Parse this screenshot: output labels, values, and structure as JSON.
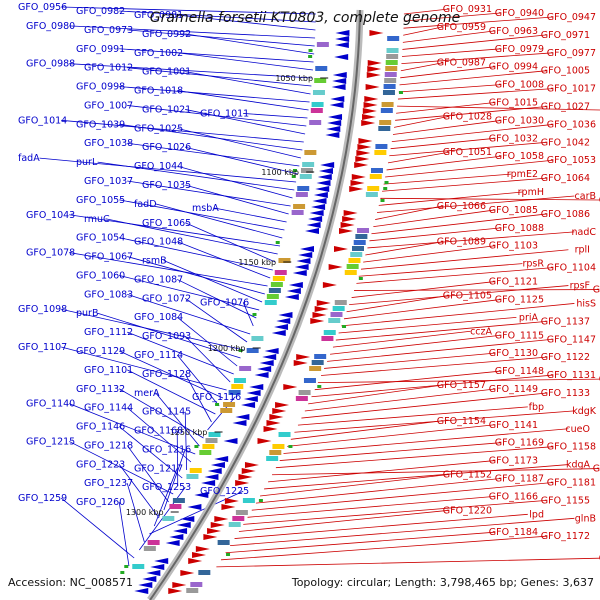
{
  "title": "Gramella forsetii KT0803, complete genome",
  "footer": {
    "accession": "Accession: NC_008571",
    "summary": "Topology: circular; Length: 3,798,465 bp; Genes: 3,637"
  },
  "colors": {
    "forward": "#cc0000",
    "reverse": "#0000cc",
    "backbone": "#999999",
    "rna": "#22aa22"
  },
  "ticks": [
    "1050 kbp",
    "1100 kbp",
    "1150 kbp",
    "1200 kbp",
    "1250 kbp",
    "1300 kbp"
  ],
  "left_labels": [
    "GFO_0956",
    "GFO_0982",
    "GFO_0981",
    "GFO_0980",
    "GFO_0973",
    "GFO_0992",
    "GFO_0991",
    "GFO_1002",
    "GFO_0988",
    "GFO_1012",
    "GFO_1001",
    "GFO_0998",
    "GFO_1018",
    "GFO_1011",
    "GFO_1007",
    "GFO_1021",
    "GFO_1014",
    "GFO_1039",
    "GFO_1025",
    "GFO_1038",
    "GFO_1026",
    "fadA",
    "purL",
    "GFO_1044",
    "GFO_1037",
    "GFO_1035",
    "msbA",
    "GFO_1055",
    "fadD",
    "GFO_1043",
    "rmuC",
    "GFO_1065",
    "GFO_1054",
    "GFO_1048",
    "GFO_1078",
    "GFO_1067",
    "rsmB",
    "GFO_1060",
    "GFO_1087",
    "GFO_1076",
    "GFO_1083",
    "GFO_1072",
    "GFO_1098",
    "purB",
    "GFO_1084",
    "GFO_1112",
    "GFO_1093",
    "GFO_1107",
    "GFO_1129",
    "GFO_1114",
    "GFO_1101",
    "GFO_1128",
    "GFO_1116",
    "GFO_1132",
    "merA",
    "GFO_1140",
    "GFO_1144",
    "GFO_1145",
    "GFO_1146",
    "GFO_1168",
    "GFO_1215",
    "GFO_1218",
    "GFO_1216",
    "GFO_1223",
    "GFO_1217",
    "GFO_1225",
    "GFO_1237",
    "GFO_1253",
    "GFO_1259",
    "GFO_1260"
  ],
  "right_labels": [
    "GFO_0931",
    "GFO_0940",
    "GFO_0947",
    "GFO_0959",
    "GFO_0963",
    "GFO_0971",
    "GFO_0979",
    "GFO_0977",
    "GFO_0987",
    "GFO_0994",
    "GFO_1005",
    "GFO_1008",
    "GFO_1017",
    "ndh",
    "GFO_1015",
    "GFO_1027",
    "GFO_1028",
    "GFO_1030",
    "GFO_1036",
    "GFO_1032",
    "GFO_1042",
    "GFO_1051",
    "GFO_1058",
    "GFO_1053",
    "rpmE2",
    "GFO_1064",
    "GFO_1075",
    "rpmH",
    "carB",
    "GFO_1066",
    "GFO_1085",
    "GFO_1086",
    "GFO_1088",
    "nadC",
    "GFO_1089",
    "GFO_1103",
    "rplI",
    "rpsR",
    "GFO_1104",
    "GFO_1095",
    "GFO_1121",
    "rpsF",
    "GFO_1105",
    "GFO_1125",
    "hisS",
    "priA",
    "GFO_1137",
    "cczA",
    "GFO_1115",
    "GFO_1147",
    "GFO_1130",
    "GFO_1122",
    "GFO_1156",
    "GFO_1148",
    "GFO_1131",
    "GFO_1157",
    "GFO_1149",
    "GFO_1133",
    "fbp",
    "kdgK",
    "GFO_1154",
    "GFO_1141",
    "cueO",
    "GFO_1169",
    "GFO_1158",
    "GFO_1150",
    "GFO_1173",
    "kdgA",
    "GFO_1152",
    "GFO_1187",
    "GFO_1181",
    "GFO_1166",
    "GFO_1155",
    "GFO_1220",
    "lpd",
    "glnB",
    "GFO_1184",
    "GFO_1172",
    "GFO_1159"
  ]
}
